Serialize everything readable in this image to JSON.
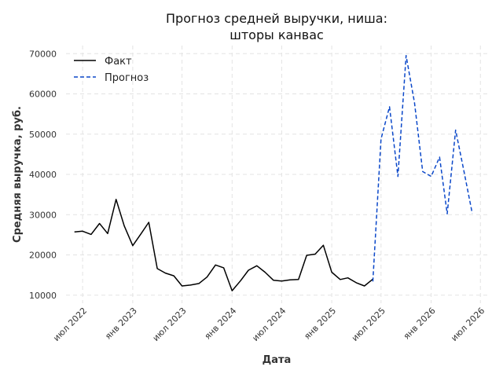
{
  "chart_data": {
    "type": "line",
    "title": "Прогноз средней выручки, ниша:",
    "subtitle": "шторы канвас",
    "xlabel": "Дата",
    "ylabel": "Средняя выручка, руб.",
    "x_ticks": [
      "июл 2022",
      "янв 2023",
      "июл 2023",
      "янв 2024",
      "июл 2024",
      "янв 2025",
      "июл 2025",
      "янв 2026",
      "июл 2026"
    ],
    "y_ticks": [
      10000,
      20000,
      30000,
      40000,
      50000,
      60000,
      70000
    ],
    "ylim": [
      8000,
      72000
    ],
    "xlim": [
      "2022-05-01",
      "2026-08-01"
    ],
    "grid": true,
    "legend_position": "top-left",
    "series": [
      {
        "name": "Факт",
        "color": "#000000",
        "style": "solid",
        "points": [
          [
            "2022-06-01",
            25700
          ],
          [
            "2022-07-01",
            25900
          ],
          [
            "2022-08-01",
            25100
          ],
          [
            "2022-09-01",
            27800
          ],
          [
            "2022-10-01",
            25300
          ],
          [
            "2022-11-01",
            33800
          ],
          [
            "2022-12-01",
            27200
          ],
          [
            "2023-01-01",
            22300
          ],
          [
            "2023-02-01",
            25300
          ],
          [
            "2023-03-01",
            28100
          ],
          [
            "2023-04-01",
            16600
          ],
          [
            "2023-05-01",
            15500
          ],
          [
            "2023-06-01",
            14800
          ],
          [
            "2023-07-01",
            12300
          ],
          [
            "2023-08-01",
            12500
          ],
          [
            "2023-09-01",
            12900
          ],
          [
            "2023-10-01",
            14500
          ],
          [
            "2023-11-01",
            17500
          ],
          [
            "2023-12-01",
            16800
          ],
          [
            "2024-01-01",
            11100
          ],
          [
            "2024-02-01",
            13600
          ],
          [
            "2024-03-01",
            16200
          ],
          [
            "2024-04-01",
            17300
          ],
          [
            "2024-05-01",
            15700
          ],
          [
            "2024-06-01",
            13700
          ],
          [
            "2024-07-01",
            13500
          ],
          [
            "2024-08-01",
            13800
          ],
          [
            "2024-09-01",
            13900
          ],
          [
            "2024-10-01",
            19900
          ],
          [
            "2024-11-01",
            20200
          ],
          [
            "2024-12-01",
            22400
          ],
          [
            "2025-01-01",
            15700
          ],
          [
            "2025-02-01",
            13900
          ],
          [
            "2025-03-01",
            14300
          ],
          [
            "2025-04-01",
            13100
          ],
          [
            "2025-05-01",
            12300
          ],
          [
            "2025-06-01",
            14000
          ]
        ]
      },
      {
        "name": "Прогноз",
        "color": "#0a47c9",
        "style": "dashed",
        "points": [
          [
            "2025-06-01",
            13400
          ],
          [
            "2025-07-01",
            48800
          ],
          [
            "2025-08-01",
            56800
          ],
          [
            "2025-09-01",
            39500
          ],
          [
            "2025-10-01",
            69500
          ],
          [
            "2025-11-01",
            57800
          ],
          [
            "2025-12-01",
            40700
          ],
          [
            "2026-01-01",
            39500
          ],
          [
            "2026-02-01",
            44300
          ],
          [
            "2026-03-01",
            30200
          ],
          [
            "2026-04-01",
            51000
          ],
          [
            "2026-05-01",
            41000
          ],
          [
            "2026-06-01",
            30300
          ]
        ]
      }
    ]
  }
}
